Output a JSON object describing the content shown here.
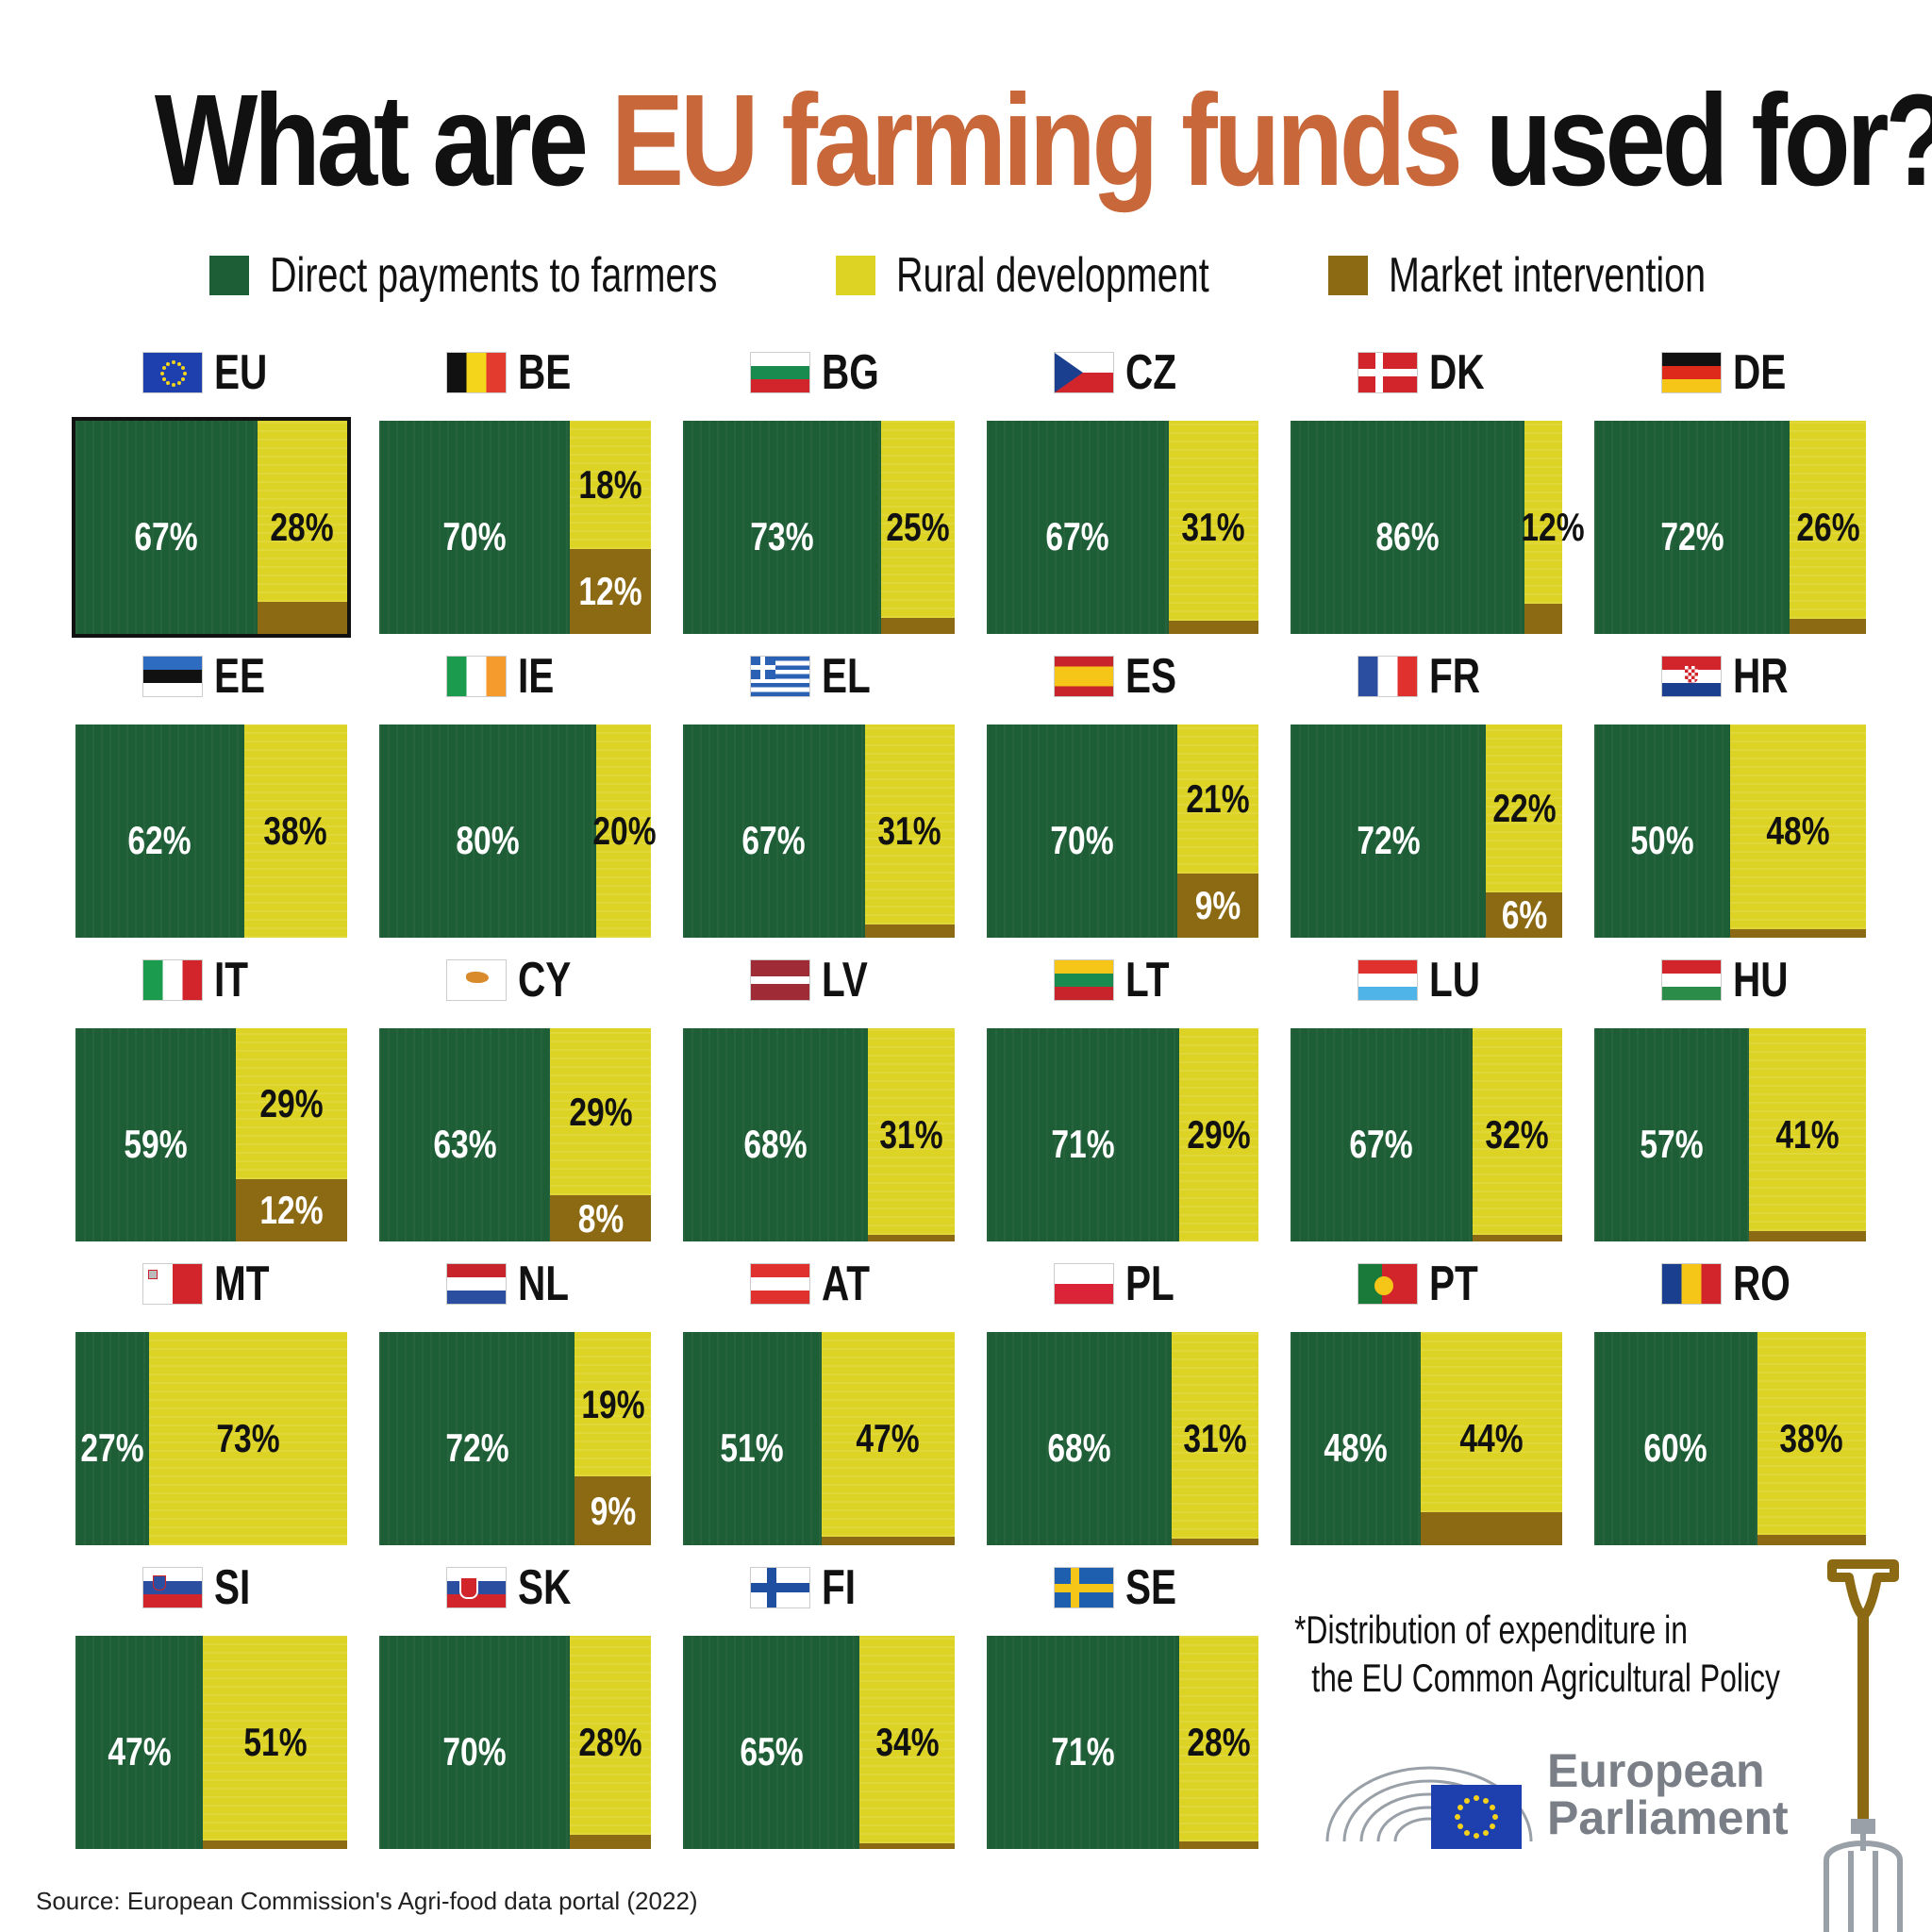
{
  "title": {
    "pre": "What are ",
    "accent": "EU farming funds",
    "post": " used for?*"
  },
  "legend": [
    {
      "label": "Direct payments to farmers",
      "color": "#1e5e36"
    },
    {
      "label": "Rural development",
      "color": "#dcd324"
    },
    {
      "label": "Market intervention",
      "color": "#8c6a14"
    }
  ],
  "footnote": [
    "*Distribution of expenditure in",
    "the EU Common Agricultural Policy"
  ],
  "source": "Source: European Commission's Agri-food data portal (2022)",
  "logo": {
    "line1": "European",
    "line2": "Parliament",
    "icon": "european-parliament-logo"
  },
  "chart_data": {
    "type": "table",
    "series_order": [
      "Direct payments to farmers",
      "Rural development",
      "Market intervention"
    ],
    "units": "percent of CAP expenditure",
    "countries": [
      {
        "code": "EU",
        "flag": "eu",
        "direct": 67,
        "rural": 28,
        "market": 5,
        "labels": [
          "67%",
          "28%",
          ""
        ]
      },
      {
        "code": "BE",
        "flag": "be",
        "direct": 70,
        "rural": 18,
        "market": 12,
        "labels": [
          "70%",
          "18%",
          "12%"
        ]
      },
      {
        "code": "BG",
        "flag": "bg",
        "direct": 73,
        "rural": 25,
        "market": 2,
        "labels": [
          "73%",
          "25%",
          ""
        ]
      },
      {
        "code": "CZ",
        "flag": "cz",
        "direct": 67,
        "rural": 31,
        "market": 2,
        "labels": [
          "67%",
          "31%",
          ""
        ]
      },
      {
        "code": "DK",
        "flag": "dk",
        "direct": 86,
        "rural": 12,
        "market": 2,
        "labels": [
          "86%",
          "12%",
          ""
        ]
      },
      {
        "code": "DE",
        "flag": "de",
        "direct": 72,
        "rural": 26,
        "market": 2,
        "labels": [
          "72%",
          "26%",
          ""
        ]
      },
      {
        "code": "EE",
        "flag": "ee",
        "direct": 62,
        "rural": 38,
        "market": 0,
        "labels": [
          "62%",
          "38%",
          ""
        ]
      },
      {
        "code": "IE",
        "flag": "ie",
        "direct": 80,
        "rural": 20,
        "market": 0,
        "labels": [
          "80%",
          "20%",
          ""
        ]
      },
      {
        "code": "EL",
        "flag": "el",
        "direct": 67,
        "rural": 31,
        "market": 2,
        "labels": [
          "67%",
          "31%",
          ""
        ]
      },
      {
        "code": "ES",
        "flag": "es",
        "direct": 70,
        "rural": 21,
        "market": 9,
        "labels": [
          "70%",
          "21%",
          "9%"
        ]
      },
      {
        "code": "FR",
        "flag": "fr",
        "direct": 72,
        "rural": 22,
        "market": 6,
        "labels": [
          "72%",
          "22%",
          "6%"
        ]
      },
      {
        "code": "HR",
        "flag": "hr",
        "direct": 50,
        "rural": 48,
        "market": 2,
        "labels": [
          "50%",
          "48%",
          ""
        ]
      },
      {
        "code": "IT",
        "flag": "it",
        "direct": 59,
        "rural": 29,
        "market": 12,
        "labels": [
          "59%",
          "29%",
          "12%"
        ]
      },
      {
        "code": "CY",
        "flag": "cy",
        "direct": 63,
        "rural": 29,
        "market": 8,
        "labels": [
          "63%",
          "29%",
          "8%"
        ]
      },
      {
        "code": "LV",
        "flag": "lv",
        "direct": 68,
        "rural": 31,
        "market": 1,
        "labels": [
          "68%",
          "31%",
          ""
        ]
      },
      {
        "code": "LT",
        "flag": "lt",
        "direct": 71,
        "rural": 29,
        "market": 0,
        "labels": [
          "71%",
          "29%",
          ""
        ]
      },
      {
        "code": "LU",
        "flag": "lu",
        "direct": 67,
        "rural": 32,
        "market": 1,
        "labels": [
          "67%",
          "32%",
          ""
        ]
      },
      {
        "code": "HU",
        "flag": "hu",
        "direct": 57,
        "rural": 41,
        "market": 2,
        "labels": [
          "57%",
          "41%",
          ""
        ]
      },
      {
        "code": "MT",
        "flag": "mt",
        "direct": 27,
        "rural": 73,
        "market": 0,
        "labels": [
          "27%",
          "73%",
          ""
        ]
      },
      {
        "code": "NL",
        "flag": "nl",
        "direct": 72,
        "rural": 19,
        "market": 9,
        "labels": [
          "72%",
          "19%",
          "9%"
        ]
      },
      {
        "code": "AT",
        "flag": "at",
        "direct": 51,
        "rural": 47,
        "market": 2,
        "labels": [
          "51%",
          "47%",
          ""
        ]
      },
      {
        "code": "PL",
        "flag": "pl",
        "direct": 68,
        "rural": 31,
        "market": 1,
        "labels": [
          "68%",
          "31%",
          ""
        ]
      },
      {
        "code": "PT",
        "flag": "pt",
        "direct": 48,
        "rural": 44,
        "market": 8,
        "labels": [
          "48%",
          "44%",
          ""
        ]
      },
      {
        "code": "RO",
        "flag": "ro",
        "direct": 60,
        "rural": 38,
        "market": 2,
        "labels": [
          "60%",
          "38%",
          ""
        ]
      },
      {
        "code": "SI",
        "flag": "si",
        "direct": 47,
        "rural": 51,
        "market": 2,
        "labels": [
          "47%",
          "51%",
          ""
        ]
      },
      {
        "code": "SK",
        "flag": "sk",
        "direct": 70,
        "rural": 28,
        "market": 2,
        "labels": [
          "70%",
          "28%",
          ""
        ]
      },
      {
        "code": "FI",
        "flag": "fi",
        "direct": 65,
        "rural": 34,
        "market": 1,
        "labels": [
          "65%",
          "34%",
          ""
        ]
      },
      {
        "code": "SE",
        "flag": "se",
        "direct": 71,
        "rural": 28,
        "market": 1,
        "labels": [
          "71%",
          "28%",
          ""
        ]
      }
    ]
  }
}
